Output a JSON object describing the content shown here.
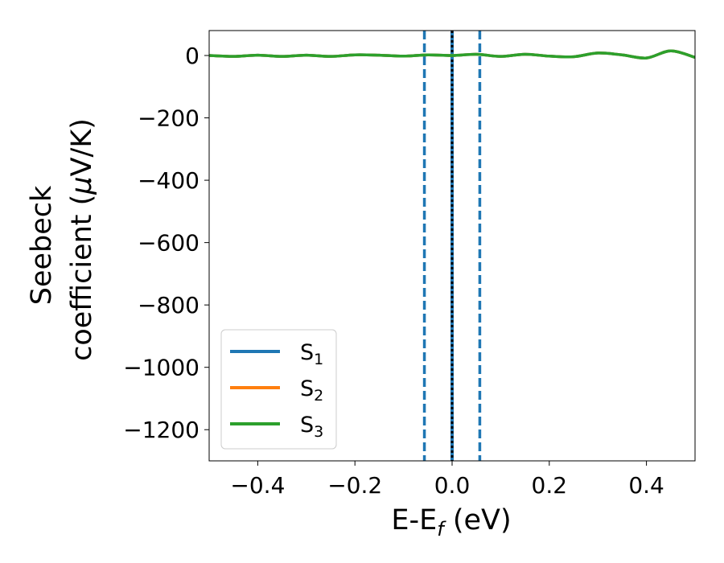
{
  "chart_data": {
    "type": "line",
    "xlabel": "E-E",
    "xlabel_sub": "f",
    "xlabel_unit": " (eV)",
    "ylabel_line1": "Seebeck",
    "ylabel_line2": "coefficient  (",
    "ylabel_mu": "μ",
    "ylabel_unit": "V/K)",
    "xlim": [
      -0.5,
      0.5
    ],
    "ylim": [
      -1300,
      80
    ],
    "xticks": [
      -0.4,
      -0.2,
      0.0,
      0.2,
      0.4
    ],
    "xtick_labels": [
      "−0.4",
      "−0.2",
      "0.0",
      "0.2",
      "0.4"
    ],
    "yticks": [
      0,
      -200,
      -400,
      -600,
      -800,
      -1000,
      -1200
    ],
    "ytick_labels": [
      "0",
      "−200",
      "−400",
      "−600",
      "−800",
      "−1000",
      "−1200"
    ],
    "legend_position": "lower-left",
    "series": [
      {
        "name": "S",
        "sub": "1",
        "color": "#1f77b4",
        "x": [
          -0.5,
          -0.45,
          -0.4,
          -0.35,
          -0.3,
          -0.25,
          -0.2,
          -0.15,
          -0.1,
          -0.05,
          0.0,
          0.05,
          0.1,
          0.15,
          0.2,
          0.25,
          0.3,
          0.35,
          0.4,
          0.45,
          0.5
        ],
        "y": [
          0,
          -3,
          1,
          -3,
          1,
          -3,
          2,
          1,
          -2,
          2,
          0,
          4,
          -3,
          4,
          -2,
          -4,
          8,
          2,
          -8,
          15,
          -6
        ]
      },
      {
        "name": "S",
        "sub": "2",
        "color": "#ff7f0e",
        "x": [
          -0.5,
          -0.45,
          -0.4,
          -0.35,
          -0.3,
          -0.25,
          -0.2,
          -0.15,
          -0.1,
          -0.05,
          0.0,
          0.05,
          0.1,
          0.15,
          0.2,
          0.25,
          0.3,
          0.35,
          0.4,
          0.45,
          0.5
        ],
        "y": [
          0,
          -3,
          1,
          -3,
          1,
          -3,
          2,
          1,
          -2,
          2,
          0,
          4,
          -3,
          4,
          -2,
          -4,
          8,
          2,
          -8,
          15,
          -6
        ]
      },
      {
        "name": "S",
        "sub": "3",
        "color": "#2ca02c",
        "x": [
          -0.5,
          -0.45,
          -0.4,
          -0.35,
          -0.3,
          -0.25,
          -0.2,
          -0.15,
          -0.1,
          -0.05,
          0.0,
          0.05,
          0.1,
          0.15,
          0.2,
          0.25,
          0.3,
          0.35,
          0.4,
          0.45,
          0.5
        ],
        "y": [
          0,
          -3,
          1,
          -3,
          1,
          -3,
          2,
          1,
          -2,
          2,
          0,
          4,
          -3,
          4,
          -2,
          -4,
          8,
          2,
          -8,
          15,
          -6
        ]
      }
    ],
    "vlines": [
      {
        "x": 0.0,
        "style": "solid",
        "color": "#1f77b4"
      },
      {
        "x": 0.0,
        "style": "dotted",
        "color": "#000000"
      },
      {
        "x": -0.057,
        "style": "dashed",
        "color": "#1f77b4"
      },
      {
        "x": 0.057,
        "style": "dashed",
        "color": "#1f77b4"
      }
    ]
  }
}
